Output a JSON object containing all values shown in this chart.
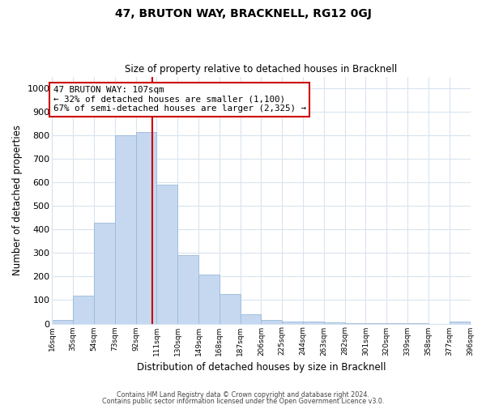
{
  "title": "47, BRUTON WAY, BRACKNELL, RG12 0GJ",
  "subtitle": "Size of property relative to detached houses in Bracknell",
  "xlabel": "Distribution of detached houses by size in Bracknell",
  "ylabel": "Number of detached properties",
  "bar_edges": [
    16,
    35,
    54,
    73,
    92,
    111,
    130,
    149,
    168,
    187,
    206,
    225,
    244,
    263,
    282,
    301,
    320,
    339,
    358,
    377,
    396
  ],
  "bar_heights": [
    15,
    120,
    430,
    800,
    815,
    590,
    290,
    210,
    125,
    40,
    15,
    10,
    8,
    5,
    3,
    2,
    1,
    1,
    0,
    8
  ],
  "bar_color": "#c5d8f0",
  "bar_edge_color": "#9ab8d8",
  "marker_x": 107,
  "marker_color": "#cc0000",
  "annotation_line1": "47 BRUTON WAY: 107sqm",
  "annotation_line2": "← 32% of detached houses are smaller (1,100)",
  "annotation_line3": "67% of semi-detached houses are larger (2,325) →",
  "annotation_box_color": "#ffffff",
  "annotation_box_edge": "#cc0000",
  "ylim": [
    0,
    1050
  ],
  "xlim": [
    16,
    396
  ],
  "tick_labels": [
    "16sqm",
    "35sqm",
    "54sqm",
    "73sqm",
    "92sqm",
    "111sqm",
    "130sqm",
    "149sqm",
    "168sqm",
    "187sqm",
    "206sqm",
    "225sqm",
    "244sqm",
    "263sqm",
    "282sqm",
    "301sqm",
    "320sqm",
    "339sqm",
    "358sqm",
    "377sqm",
    "396sqm"
  ],
  "ytick_labels": [
    "0",
    "100",
    "200",
    "300",
    "400",
    "500",
    "600",
    "700",
    "800",
    "900",
    "1000"
  ],
  "ytick_values": [
    0,
    100,
    200,
    300,
    400,
    500,
    600,
    700,
    800,
    900,
    1000
  ],
  "footer1": "Contains HM Land Registry data © Crown copyright and database right 2024.",
  "footer2": "Contains public sector information licensed under the Open Government Licence v3.0.",
  "bg_color": "#ffffff",
  "grid_color": "#d8e4f0"
}
